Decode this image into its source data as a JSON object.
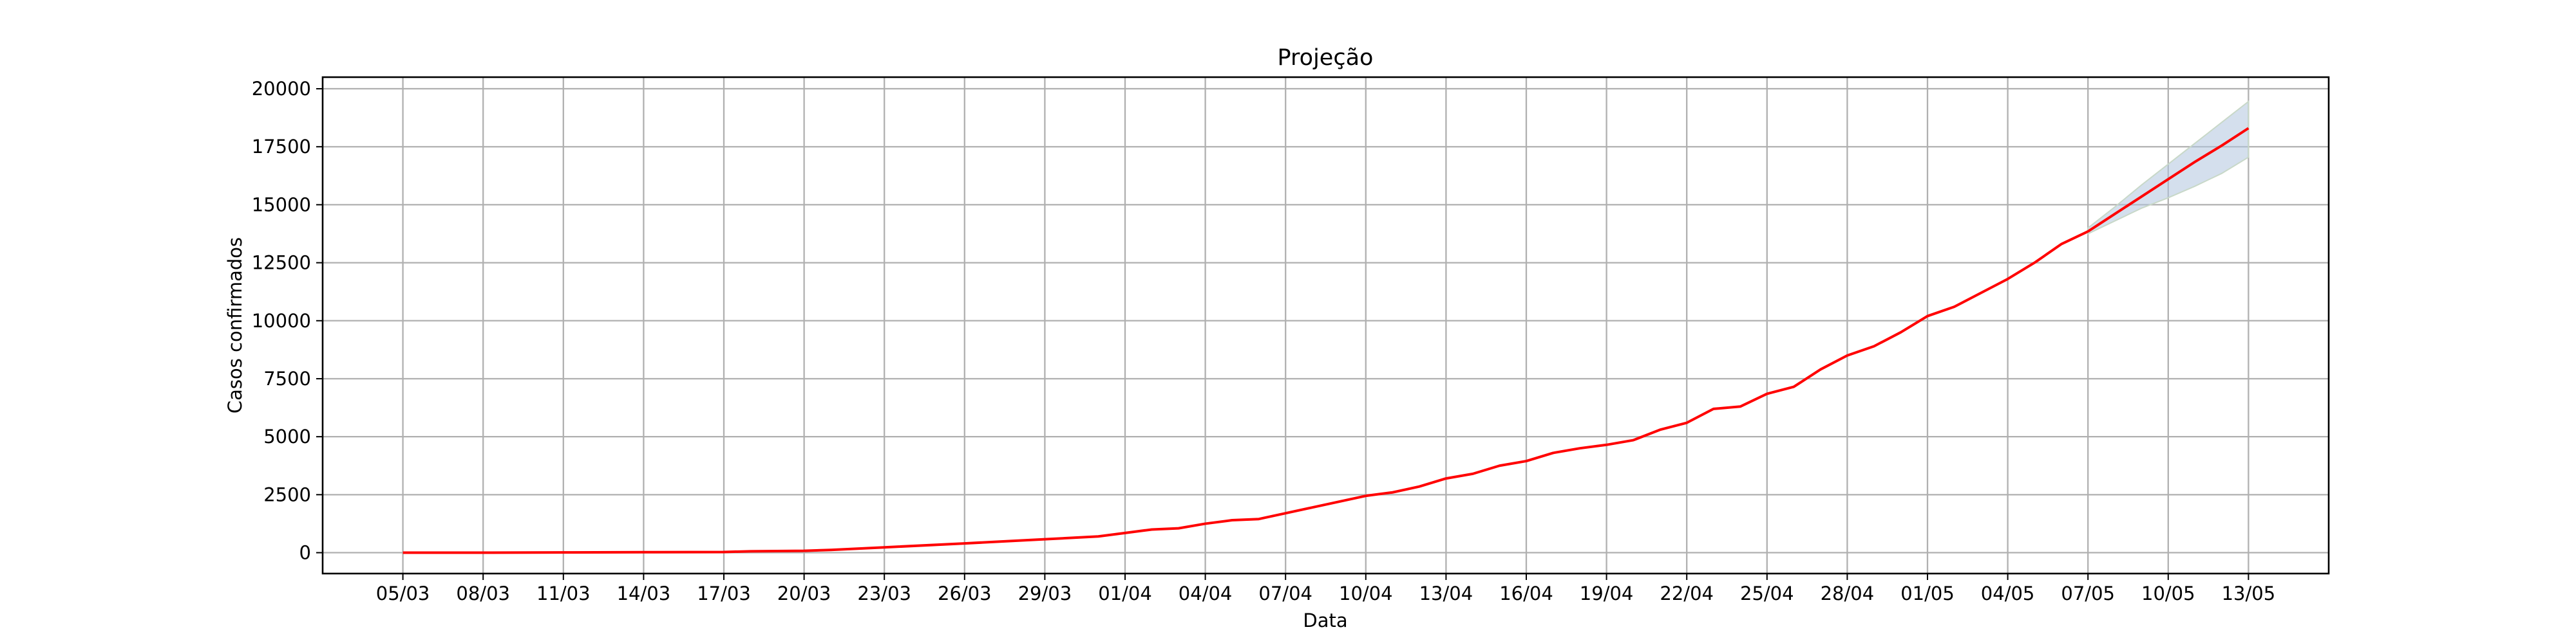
{
  "chart_data": {
    "type": "line",
    "title": "Projeção",
    "xlabel": "Data",
    "ylabel": "Casos confirmados",
    "x_tick_labels": [
      "05/03",
      "08/03",
      "11/03",
      "14/03",
      "17/03",
      "20/03",
      "23/03",
      "26/03",
      "29/03",
      "01/04",
      "04/04",
      "07/04",
      "10/04",
      "13/04",
      "16/04",
      "19/04",
      "22/04",
      "25/04",
      "28/04",
      "01/05",
      "04/05",
      "07/05",
      "10/05",
      "13/05"
    ],
    "x_range": [
      "2020-03-02",
      "2020-05-16"
    ],
    "y_ticks": [
      0,
      2500,
      5000,
      7500,
      10000,
      12500,
      15000,
      17500,
      20000
    ],
    "y_tick_labels": [
      "0",
      "2500",
      "5000",
      "7500",
      "10000",
      "12500",
      "15000",
      "17500",
      "20000"
    ],
    "ylim": [
      -900,
      20500
    ],
    "grid": true,
    "line_color": "#ff0000",
    "band_color": "#b0c4de",
    "series": [
      {
        "x": [
          "2020-03-05",
          "2020-03-08",
          "2020-03-11",
          "2020-03-14",
          "2020-03-17",
          "2020-03-18",
          "2020-03-20",
          "2020-03-21",
          "2020-03-23",
          "2020-03-26",
          "2020-03-29",
          "2020-03-31",
          "2020-04-01",
          "2020-04-02",
          "2020-04-03",
          "2020-04-04",
          "2020-04-05",
          "2020-04-06",
          "2020-04-07",
          "2020-04-08",
          "2020-04-09",
          "2020-04-10",
          "2020-04-11",
          "2020-04-12",
          "2020-04-13",
          "2020-04-14",
          "2020-04-15",
          "2020-04-16",
          "2020-04-17",
          "2020-04-18",
          "2020-04-19",
          "2020-04-20",
          "2020-04-21",
          "2020-04-22",
          "2020-04-23",
          "2020-04-24",
          "2020-04-25",
          "2020-04-26",
          "2020-04-27",
          "2020-04-28",
          "2020-04-29",
          "2020-04-30",
          "2020-05-01",
          "2020-05-02",
          "2020-05-03",
          "2020-05-04",
          "2020-05-05",
          "2020-05-06",
          "2020-05-07"
        ],
        "y": [
          0,
          0,
          10,
          20,
          30,
          60,
          80,
          120,
          230,
          400,
          580,
          700,
          850,
          1000,
          1050,
          1250,
          1400,
          1450,
          1700,
          1950,
          2200,
          2450,
          2600,
          2850,
          3200,
          3400,
          3750,
          3950,
          4300,
          4500,
          4650,
          4850,
          5300,
          5600,
          6200,
          6300,
          6850,
          7150,
          7900,
          8500,
          8900,
          9500,
          10200,
          10600,
          11200,
          11800,
          12500,
          13300,
          13850
        ]
      },
      {
        "x": [
          "2020-05-07",
          "2020-05-08",
          "2020-05-09",
          "2020-05-10",
          "2020-05-11",
          "2020-05-12",
          "2020-05-13"
        ],
        "y": [
          13850,
          14600,
          15350,
          16100,
          16850,
          17550,
          18300
        ]
      }
    ],
    "confidence_band": {
      "x": [
        "2020-05-07",
        "2020-05-08",
        "2020-05-09",
        "2020-05-10",
        "2020-05-11",
        "2020-05-12",
        "2020-05-13"
      ],
      "lower": [
        13750,
        14300,
        14850,
        15300,
        15800,
        16350,
        17050
      ],
      "upper": [
        14000,
        14900,
        15850,
        16750,
        17650,
        18550,
        19450
      ]
    }
  }
}
